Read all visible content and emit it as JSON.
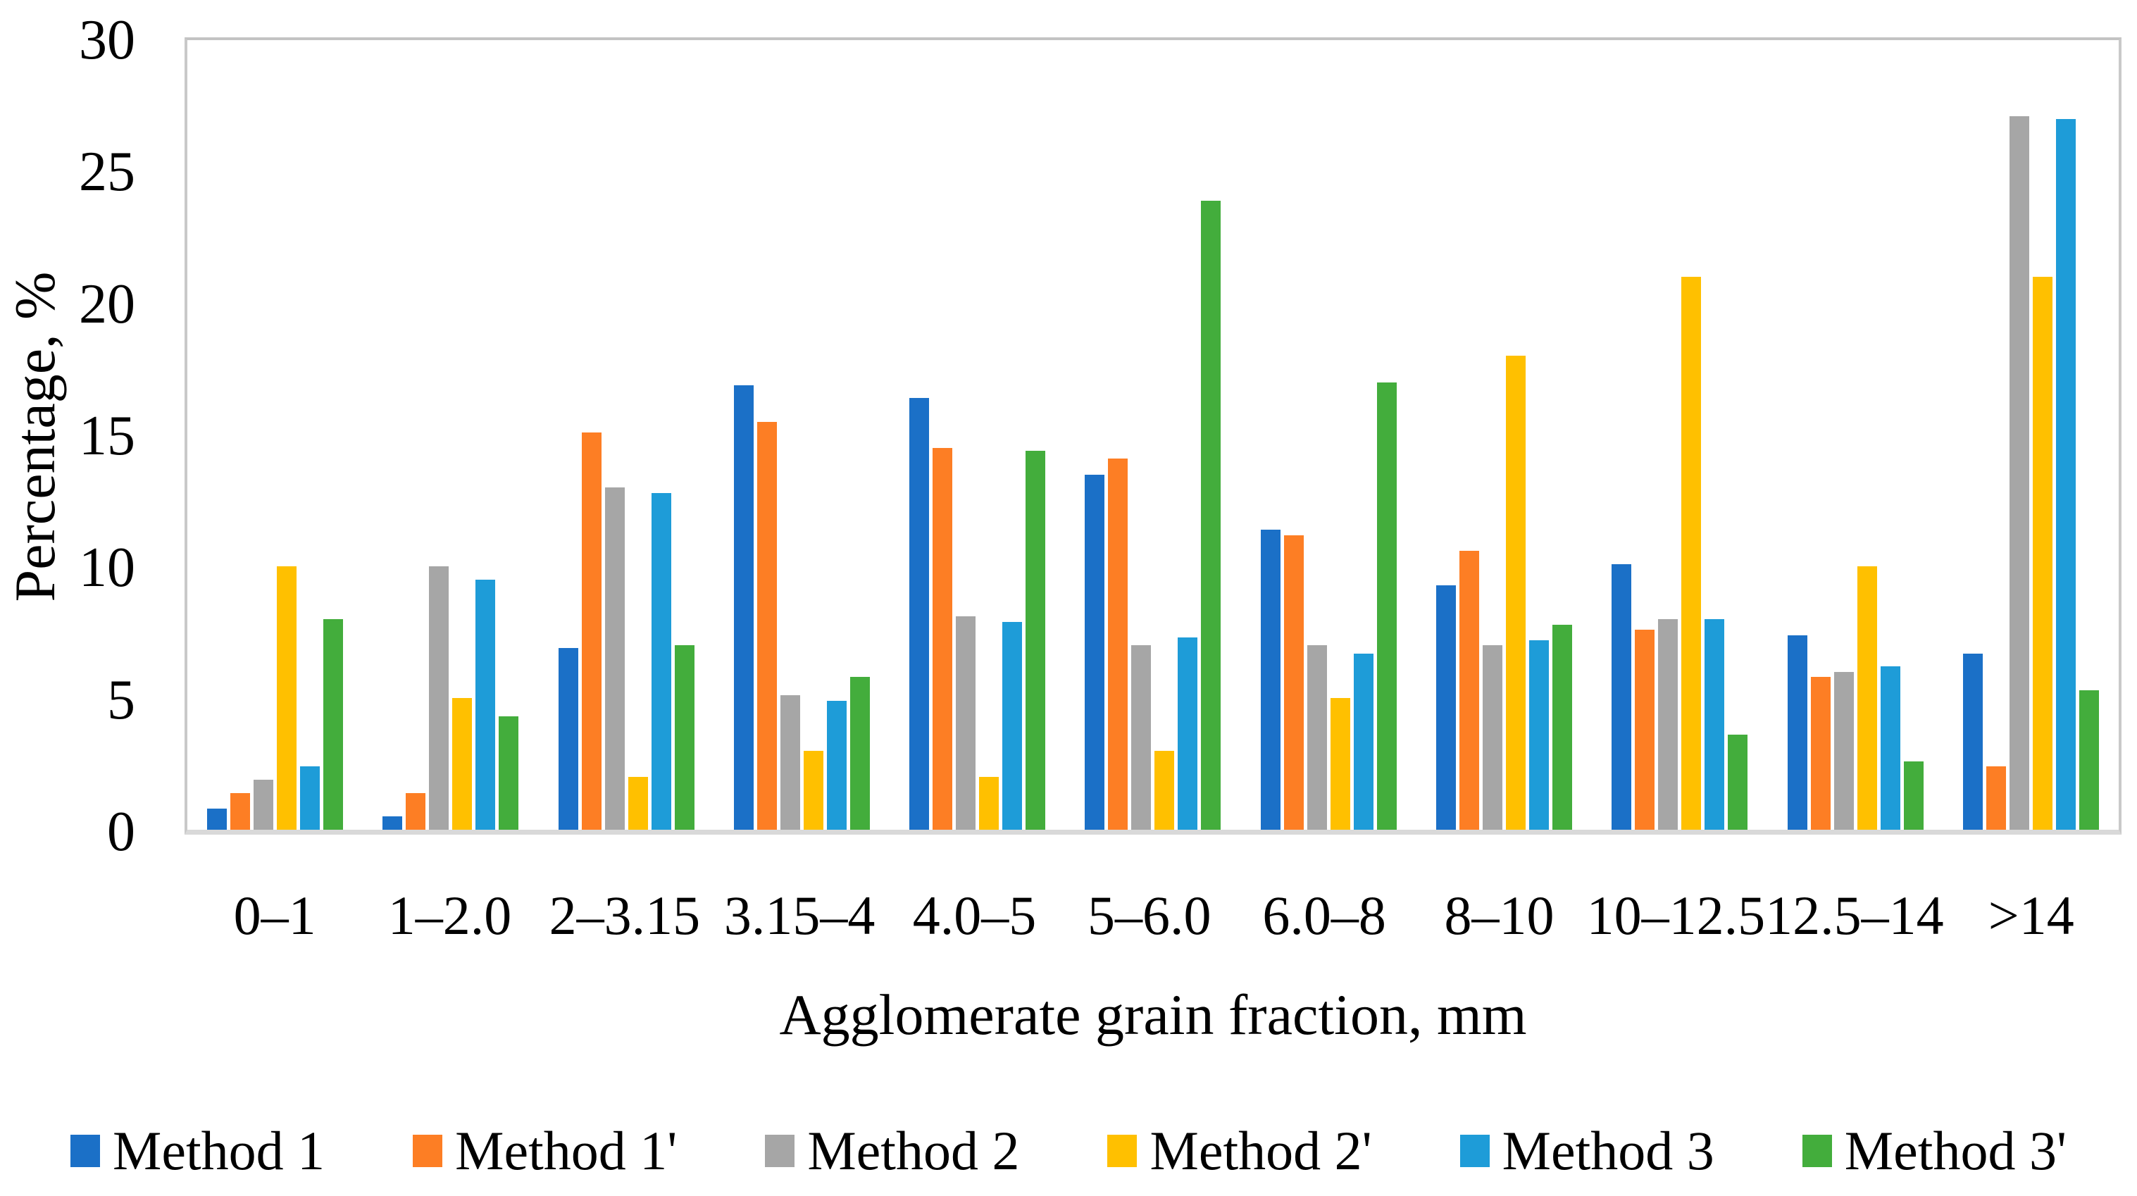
{
  "chart_data": {
    "type": "bar",
    "title": "",
    "xlabel": "Agglomerate grain fraction, mm",
    "ylabel": "Percentage, %",
    "ylim": [
      0,
      30
    ],
    "yticks": [
      0,
      5,
      10,
      15,
      20,
      25,
      30
    ],
    "grid": false,
    "legend_position": "bottom",
    "categories": [
      "0–1",
      "1–2.0",
      "2–3.15",
      "3.15–4",
      "4.0–5",
      "5–6.0",
      "6.0–8",
      "8–10",
      "10–12.5",
      "12.5–14",
      ">14"
    ],
    "series": [
      {
        "name": "Method 1",
        "color": "#1b70c7",
        "values": [
          0.8,
          0.5,
          6.9,
          16.9,
          16.4,
          13.5,
          11.4,
          9.3,
          10.1,
          7.4,
          6.7
        ]
      },
      {
        "name": "Method 1'",
        "color": "#fd7e24",
        "values": [
          1.4,
          1.4,
          15.1,
          15.5,
          14.5,
          14.1,
          11.2,
          10.6,
          7.6,
          5.8,
          2.4
        ]
      },
      {
        "name": "Method 2",
        "color": "#a6a6a6",
        "values": [
          1.9,
          10.0,
          13.0,
          5.1,
          8.1,
          7.0,
          7.0,
          7.0,
          8.0,
          6.0,
          27.1
        ]
      },
      {
        "name": "Method 2'",
        "color": "#ffc000",
        "values": [
          10.0,
          5.0,
          2.0,
          3.0,
          2.0,
          3.0,
          5.0,
          18.0,
          21.0,
          10.0,
          21.0
        ]
      },
      {
        "name": "Method 3",
        "color": "#1e9cd8",
        "values": [
          2.4,
          9.5,
          12.8,
          4.9,
          7.9,
          7.3,
          6.7,
          7.2,
          8.0,
          6.2,
          27.0
        ]
      },
      {
        "name": "Method 3'",
        "color": "#43ad3c",
        "values": [
          8.0,
          4.3,
          7.0,
          5.8,
          14.4,
          23.9,
          17.0,
          7.8,
          3.6,
          2.6,
          5.3
        ]
      }
    ]
  }
}
